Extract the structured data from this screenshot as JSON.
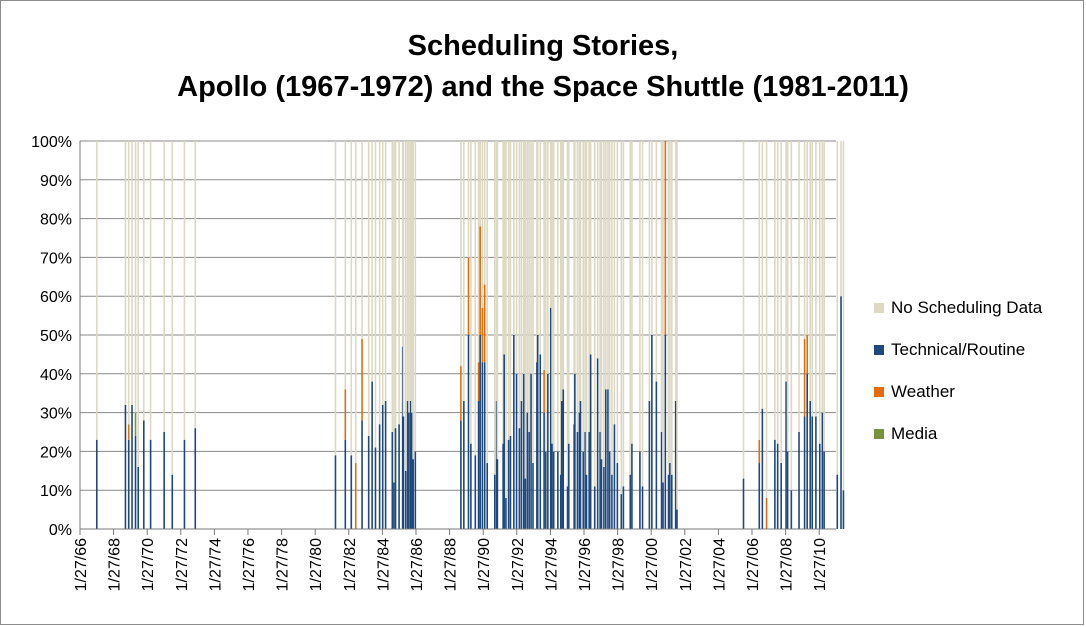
{
  "chart_data": {
    "type": "bar",
    "stacked": true,
    "title": [
      "Scheduling Stories,",
      "Apollo (1967-1972) and the Space Shuttle (1981-2011)"
    ],
    "y_ticks": [
      "0%",
      "10%",
      "20%",
      "30%",
      "40%",
      "50%",
      "60%",
      "70%",
      "80%",
      "90%",
      "100%"
    ],
    "ylim": [
      0,
      100
    ],
    "x_ticks": [
      "1/27/66",
      "1/27/68",
      "1/27/70",
      "1/27/72",
      "1/27/74",
      "1/27/76",
      "1/27/78",
      "1/27/80",
      "1/27/82",
      "1/27/84",
      "1/27/86",
      "1/27/88",
      "1/27/90",
      "1/27/92",
      "1/27/94",
      "1/27/96",
      "1/27/98",
      "1/27/00",
      "1/27/02",
      "1/27/04",
      "1/27/06",
      "1/27/08",
      "1/27/10"
    ],
    "xlim": [
      "1/27/66",
      "1/27/11"
    ],
    "grid": true,
    "legend_position": "right",
    "series": [
      {
        "name": "No Scheduling Data",
        "color": "#ddd8c2"
      },
      {
        "name": "Technical/Routine",
        "color": "#1f497d"
      },
      {
        "name": "Weather",
        "color": "#e46c0a"
      },
      {
        "name": "Media",
        "color": "#77933c"
      }
    ],
    "points": [
      {
        "x": "1967-01-27",
        "t": 23,
        "w": 0,
        "m": 0
      },
      {
        "x": "1968-10-11",
        "t": 32,
        "w": 0,
        "m": 0
      },
      {
        "x": "1968-12-21",
        "t": 23,
        "w": 4,
        "m": 0
      },
      {
        "x": "1969-03-03",
        "t": 32,
        "w": 0,
        "m": 0
      },
      {
        "x": "1969-05-18",
        "t": 24,
        "w": 0,
        "m": 6
      },
      {
        "x": "1969-07-16",
        "t": 16,
        "w": 0,
        "m": 0
      },
      {
        "x": "1969-11-14",
        "t": 28,
        "w": 0,
        "m": 0
      },
      {
        "x": "1970-04-11",
        "t": 23,
        "w": 0,
        "m": 0
      },
      {
        "x": "1971-01-31",
        "t": 25,
        "w": 0,
        "m": 0
      },
      {
        "x": "1971-07-26",
        "t": 14,
        "w": 0,
        "m": 0
      },
      {
        "x": "1972-04-16",
        "t": 23,
        "w": 0,
        "m": 0
      },
      {
        "x": "1972-12-07",
        "t": 26,
        "w": 0,
        "m": 0
      },
      {
        "x": "1981-04-12",
        "t": 19,
        "w": 0,
        "m": 0
      },
      {
        "x": "1981-11-12",
        "t": 23,
        "w": 13,
        "m": 0
      },
      {
        "x": "1982-03-22",
        "t": 19,
        "w": 0,
        "m": 0
      },
      {
        "x": "1982-06-27",
        "t": 0,
        "w": 17,
        "m": 0
      },
      {
        "x": "1982-11-11",
        "t": 28,
        "w": 21,
        "m": 0
      },
      {
        "x": "1983-04-04",
        "t": 24,
        "w": 0,
        "m": 0
      },
      {
        "x": "1983-06-18",
        "t": 38,
        "w": 0,
        "m": 0
      },
      {
        "x": "1983-08-30",
        "t": 21,
        "w": 0,
        "m": 0
      },
      {
        "x": "1983-11-28",
        "t": 27,
        "w": 0,
        "m": 0
      },
      {
        "x": "1984-02-03",
        "t": 32,
        "w": 0,
        "m": 0
      },
      {
        "x": "1984-04-06",
        "t": 33,
        "w": 0,
        "m": 0
      },
      {
        "x": "1984-08-30",
        "t": 25,
        "w": 0,
        "m": 0
      },
      {
        "x": "1984-10-05",
        "t": 12,
        "w": 0,
        "m": 0
      },
      {
        "x": "1984-11-08",
        "t": 26,
        "w": 0,
        "m": 0
      },
      {
        "x": "1985-01-24",
        "t": 27,
        "w": 0,
        "m": 0
      },
      {
        "x": "1985-04-12",
        "t": 47,
        "w": 0,
        "m": 0
      },
      {
        "x": "1985-04-29",
        "t": 29,
        "w": 0,
        "m": 0
      },
      {
        "x": "1985-06-17",
        "t": 15,
        "w": 0,
        "m": 0
      },
      {
        "x": "1985-07-29",
        "t": 33,
        "w": 0,
        "m": 0
      },
      {
        "x": "1985-08-27",
        "t": 30,
        "w": 0,
        "m": 0
      },
      {
        "x": "1985-10-03",
        "t": 33,
        "w": 0,
        "m": 0
      },
      {
        "x": "1985-10-30",
        "t": 30,
        "w": 0,
        "m": 0
      },
      {
        "x": "1985-11-26",
        "t": 18,
        "w": 0,
        "m": 0
      },
      {
        "x": "1986-01-12",
        "t": 20,
        "w": 0,
        "m": 0
      },
      {
        "x": "1988-09-29",
        "t": 28,
        "w": 14,
        "m": 0
      },
      {
        "x": "1988-12-02",
        "t": 33,
        "w": 0,
        "m": 0
      },
      {
        "x": "1989-03-13",
        "t": 50,
        "w": 20,
        "m": 0
      },
      {
        "x": "1989-05-04",
        "t": 22,
        "w": 0,
        "m": 0
      },
      {
        "x": "1989-08-08",
        "t": 19,
        "w": 0,
        "m": 0
      },
      {
        "x": "1989-10-18",
        "t": 33,
        "w": 10,
        "m": 0
      },
      {
        "x": "1989-11-22",
        "t": 50,
        "w": 28,
        "m": 0
      },
      {
        "x": "1990-01-09",
        "t": 43,
        "w": 14,
        "m": 0
      },
      {
        "x": "1990-02-28",
        "t": 43,
        "w": 20,
        "m": 0
      },
      {
        "x": "1990-04-24",
        "t": 17,
        "w": 0,
        "m": 0
      },
      {
        "x": "1990-10-06",
        "t": 14,
        "w": 0,
        "m": 0
      },
      {
        "x": "1990-11-15",
        "t": 33,
        "w": 0,
        "m": 0
      },
      {
        "x": "1990-12-02",
        "t": 18,
        "w": 0,
        "m": 0
      },
      {
        "x": "1991-04-05",
        "t": 22,
        "w": 0,
        "m": 0
      },
      {
        "x": "1991-04-28",
        "t": 45,
        "w": 0,
        "m": 0
      },
      {
        "x": "1991-06-05",
        "t": 8,
        "w": 0,
        "m": 0
      },
      {
        "x": "1991-08-02",
        "t": 23,
        "w": 0,
        "m": 0
      },
      {
        "x": "1991-09-12",
        "t": 24,
        "w": 0,
        "m": 0
      },
      {
        "x": "1991-11-24",
        "t": 50,
        "w": 0,
        "m": 0
      },
      {
        "x": "1992-01-22",
        "t": 40,
        "w": 0,
        "m": 0
      },
      {
        "x": "1992-03-24",
        "t": 26,
        "w": 0,
        "m": 0
      },
      {
        "x": "1992-05-07",
        "t": 33,
        "w": 0,
        "m": 0
      },
      {
        "x": "1992-06-25",
        "t": 40,
        "w": 0,
        "m": 0
      },
      {
        "x": "1992-07-31",
        "t": 13,
        "w": 0,
        "m": 0
      },
      {
        "x": "1992-09-12",
        "t": 30,
        "w": 0,
        "m": 0
      },
      {
        "x": "1992-10-22",
        "t": 25,
        "w": 0,
        "m": 0
      },
      {
        "x": "1992-12-02",
        "t": 40,
        "w": 0,
        "m": 0
      },
      {
        "x": "1993-01-13",
        "t": 17,
        "w": 0,
        "m": 0
      },
      {
        "x": "1993-04-08",
        "t": 43,
        "w": 0,
        "m": 0
      },
      {
        "x": "1993-04-26",
        "t": 50,
        "w": 0,
        "m": 0
      },
      {
        "x": "1993-06-21",
        "t": 45,
        "w": 0,
        "m": 0
      },
      {
        "x": "1993-09-12",
        "t": 30,
        "w": 11,
        "m": 0
      },
      {
        "x": "1993-10-18",
        "t": 20,
        "w": 0,
        "m": 0
      },
      {
        "x": "1993-12-02",
        "t": 40,
        "w": 0,
        "m": 0
      },
      {
        "x": "1994-02-03",
        "t": 57,
        "w": 0,
        "m": 0
      },
      {
        "x": "1994-03-04",
        "t": 22,
        "w": 0,
        "m": 0
      },
      {
        "x": "1994-04-09",
        "t": 20,
        "w": 0,
        "m": 0
      },
      {
        "x": "1994-07-08",
        "t": 20,
        "w": 0,
        "m": 0
      },
      {
        "x": "1994-09-09",
        "t": 14,
        "w": 0,
        "m": 0
      },
      {
        "x": "1994-09-30",
        "t": 33,
        "w": 0,
        "m": 0
      },
      {
        "x": "1994-11-03",
        "t": 36,
        "w": 0,
        "m": 0
      },
      {
        "x": "1995-02-03",
        "t": 11,
        "w": 0,
        "m": 0
      },
      {
        "x": "1995-03-02",
        "t": 22,
        "w": 0,
        "m": 0
      },
      {
        "x": "1995-06-27",
        "t": 27,
        "w": 0,
        "m": 0
      },
      {
        "x": "1995-07-13",
        "t": 40,
        "w": 0,
        "m": 0
      },
      {
        "x": "1995-09-07",
        "t": 25,
        "w": 0,
        "m": 0
      },
      {
        "x": "1995-10-20",
        "t": 30,
        "w": 0,
        "m": 0
      },
      {
        "x": "1995-11-12",
        "t": 33,
        "w": 0,
        "m": 0
      },
      {
        "x": "1996-01-11",
        "t": 20,
        "w": 0,
        "m": 0
      },
      {
        "x": "1996-02-22",
        "t": 25,
        "w": 0,
        "m": 0
      },
      {
        "x": "1996-03-22",
        "t": 14,
        "w": 0,
        "m": 0
      },
      {
        "x": "1996-05-19",
        "t": 25,
        "w": 0,
        "m": 0
      },
      {
        "x": "1996-06-20",
        "t": 45,
        "w": 0,
        "m": 0
      },
      {
        "x": "1996-09-16",
        "t": 11,
        "w": 0,
        "m": 0
      },
      {
        "x": "1996-11-19",
        "t": 44,
        "w": 0,
        "m": 0
      },
      {
        "x": "1997-01-12",
        "t": 25,
        "w": 0,
        "m": 0
      },
      {
        "x": "1997-02-11",
        "t": 18,
        "w": 0,
        "m": 0
      },
      {
        "x": "1997-04-04",
        "t": 16,
        "w": 0,
        "m": 0
      },
      {
        "x": "1997-05-15",
        "t": 36,
        "w": 0,
        "m": 0
      },
      {
        "x": "1997-07-01",
        "t": 36,
        "w": 0,
        "m": 0
      },
      {
        "x": "1997-08-07",
        "t": 20,
        "w": 0,
        "m": 0
      },
      {
        "x": "1997-09-25",
        "t": 14,
        "w": 0,
        "m": 0
      },
      {
        "x": "1997-11-19",
        "t": 27,
        "w": 0,
        "m": 0
      },
      {
        "x": "1998-01-22",
        "t": 17,
        "w": 0,
        "m": 0
      },
      {
        "x": "1998-04-17",
        "t": 9,
        "w": 0,
        "m": 0
      },
      {
        "x": "1998-06-02",
        "t": 11,
        "w": 0,
        "m": 0
      },
      {
        "x": "1998-10-29",
        "t": 14,
        "w": 0,
        "m": 0
      },
      {
        "x": "1998-12-04",
        "t": 22,
        "w": 0,
        "m": 0
      },
      {
        "x": "1999-05-27",
        "t": 20,
        "w": 0,
        "m": 0
      },
      {
        "x": "1999-07-23",
        "t": 11,
        "w": 0,
        "m": 0
      },
      {
        "x": "1999-12-19",
        "t": 33,
        "w": 0,
        "m": 0
      },
      {
        "x": "2000-02-11",
        "t": 50,
        "w": 0,
        "m": 0
      },
      {
        "x": "2000-05-19",
        "t": 38,
        "w": 0,
        "m": 0
      },
      {
        "x": "2000-09-08",
        "t": 25,
        "w": 0,
        "m": 0
      },
      {
        "x": "2000-10-11",
        "t": 12,
        "w": 0,
        "m": 0
      },
      {
        "x": "2000-11-30",
        "t": 50,
        "w": 50,
        "m": 0
      },
      {
        "x": "2001-02-07",
        "t": 14,
        "w": 0,
        "m": 0
      },
      {
        "x": "2001-03-08",
        "t": 17,
        "w": 0,
        "m": 0
      },
      {
        "x": "2001-04-19",
        "t": 14,
        "w": 0,
        "m": 0
      },
      {
        "x": "2001-07-12",
        "t": 33,
        "w": 0,
        "m": 0
      },
      {
        "x": "2001-08-10",
        "t": 5,
        "w": 0,
        "m": 0
      },
      {
        "x": "2005-07-26",
        "t": 13,
        "w": 0,
        "m": 0
      },
      {
        "x": "2006-07-04",
        "t": 17,
        "w": 6,
        "m": 0
      },
      {
        "x": "2006-09-09",
        "t": 31,
        "w": 0,
        "m": 0
      },
      {
        "x": "2006-12-09",
        "t": 0,
        "w": 8,
        "m": 0
      },
      {
        "x": "2007-06-08",
        "t": 23,
        "w": 0,
        "m": 0
      },
      {
        "x": "2007-08-08",
        "t": 22,
        "w": 0,
        "m": 0
      },
      {
        "x": "2007-10-23",
        "t": 17,
        "w": 0,
        "m": 0
      },
      {
        "x": "2008-02-07",
        "t": 38,
        "w": 0,
        "m": 0
      },
      {
        "x": "2008-03-11",
        "t": 20,
        "w": 0,
        "m": 0
      },
      {
        "x": "2008-05-31",
        "t": 10,
        "w": 0,
        "m": 0
      },
      {
        "x": "2008-11-14",
        "t": 25,
        "w": 0,
        "m": 0
      },
      {
        "x": "2009-03-15",
        "t": 29,
        "w": 20,
        "m": 0
      },
      {
        "x": "2009-05-11",
        "t": 40,
        "w": 10,
        "m": 0
      },
      {
        "x": "2009-07-15",
        "t": 33,
        "w": 0,
        "m": 0
      },
      {
        "x": "2009-08-28",
        "t": 29,
        "w": 0,
        "m": 0
      },
      {
        "x": "2009-11-16",
        "t": 29,
        "w": 0,
        "m": 0
      },
      {
        "x": "2010-02-08",
        "t": 22,
        "w": 0,
        "m": 0
      },
      {
        "x": "2010-04-05",
        "t": 30,
        "w": 0,
        "m": 0
      },
      {
        "x": "2010-05-14",
        "t": 20,
        "w": 0,
        "m": 0
      },
      {
        "x": "2011-02-24",
        "t": 14,
        "w": 0,
        "m": 0
      },
      {
        "x": "2011-05-16",
        "t": 60,
        "w": 0,
        "m": 0
      },
      {
        "x": "2011-07-08",
        "t": 10,
        "w": 0,
        "m": 0
      }
    ]
  }
}
